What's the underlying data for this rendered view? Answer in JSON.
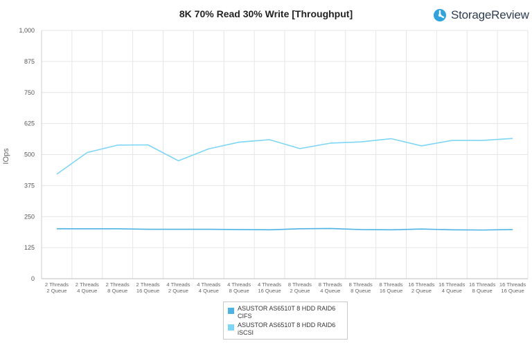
{
  "brand": {
    "name": "StorageReview",
    "icon": "storagereview-logo-icon",
    "color": "#2ea3e0"
  },
  "chart_data": {
    "type": "line",
    "title": "8K 70% Read 30% Write [Throughput]",
    "ylabel": "IOps",
    "xlabel": "",
    "ylim": [
      0,
      1000
    ],
    "yticks": [
      "0",
      "125",
      "250",
      "375",
      "500",
      "625",
      "750",
      "875",
      "1,000"
    ],
    "grid": true,
    "legend_position": "bottom",
    "categories": [
      [
        "2 Threads",
        "2 Queue"
      ],
      [
        "2 Threads",
        "4 Queue"
      ],
      [
        "2 Threads",
        "8 Queue"
      ],
      [
        "2 Threads",
        "16 Queue"
      ],
      [
        "4 Threads",
        "2 Queue"
      ],
      [
        "4 Threads",
        "4 Queue"
      ],
      [
        "4 Threads",
        "8 Queue"
      ],
      [
        "4 Threads",
        "16 Queue"
      ],
      [
        "8 Threads",
        "2 Queue"
      ],
      [
        "8 Threads",
        "4 Queue"
      ],
      [
        "8 Threads",
        "8 Queue"
      ],
      [
        "8 Threads",
        "16 Queue"
      ],
      [
        "16 Threads",
        "2 Queue"
      ],
      [
        "16 Threads",
        "4 Queue"
      ],
      [
        "16 Threads",
        "8 Queue"
      ],
      [
        "16 Threads",
        "16 Queue"
      ]
    ],
    "series": [
      {
        "name": [
          "ASUSTOR AS6510T 8 HDD RAID6",
          "CIFS"
        ],
        "color": "#4db3e6",
        "values": [
          201,
          201,
          201,
          199,
          199,
          199,
          198,
          197,
          201,
          202,
          198,
          197,
          200,
          197,
          196,
          198
        ]
      },
      {
        "name": [
          "ASUSTOR AS6510T 8 HDD RAID6",
          "iSCSI"
        ],
        "color": "#7dd6f5",
        "values": [
          421,
          508,
          538,
          539,
          475,
          523,
          550,
          560,
          524,
          546,
          551,
          564,
          535,
          557,
          557,
          565
        ]
      }
    ]
  }
}
